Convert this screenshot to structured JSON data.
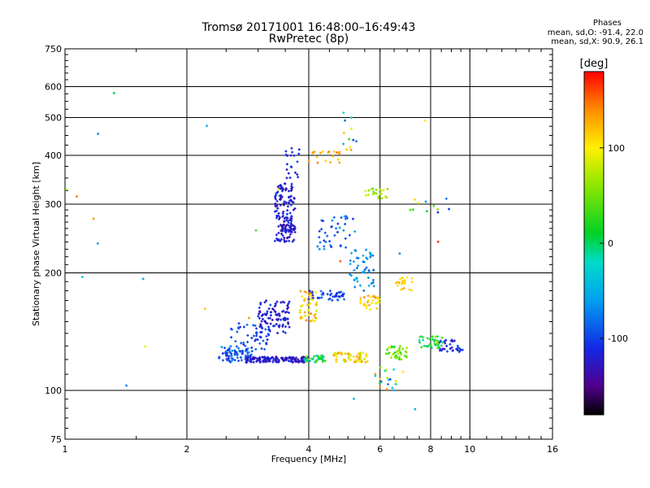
{
  "chart_data": {
    "type": "scatter",
    "title": "Tromsø 20171001 16:48:00–16:49:43",
    "subtitle": "RwPretec (8p)",
    "xlabel": "Frequency [MHz]",
    "ylabel": "Stationary phase Virtual Height [km]",
    "xscale": "log",
    "yscale": "log",
    "xlim": [
      1,
      16
    ],
    "ylim": [
      75,
      750
    ],
    "xticks": [
      "1",
      "2",
      "4",
      "6",
      "8",
      "10",
      "16"
    ],
    "yticks": [
      "75",
      "100",
      "200",
      "300",
      "400",
      "500",
      "600",
      "750"
    ],
    "grid": true,
    "colorbar": {
      "label": "[deg]",
      "ticks": [
        "100",
        "0",
        "-100"
      ],
      "range": [
        -180,
        180
      ]
    },
    "stats": {
      "heading": "Phases",
      "o_line": "mean, sd,O: -91.4, 22.0",
      "x_line": "mean, sd,X: 90.9, 26.1"
    },
    "clusters": [
      {
        "f": [
          2.4,
          2.9
        ],
        "h": [
          118,
          130
        ],
        "phase": [
          -60,
          -110
        ],
        "n": 60
      },
      {
        "f": [
          2.5,
          3.2
        ],
        "h": [
          120,
          150
        ],
        "phase": [
          -80,
          -120
        ],
        "n": 70
      },
      {
        "f": [
          2.8,
          4.0
        ],
        "h": [
          118,
          122
        ],
        "phase": [
          -110,
          -140
        ],
        "n": 140
      },
      {
        "f": [
          3.0,
          3.6
        ],
        "h": [
          140,
          170
        ],
        "phase": [
          -100,
          -140
        ],
        "n": 90
      },
      {
        "f": [
          3.3,
          3.7
        ],
        "h": [
          240,
          340
        ],
        "phase": [
          -100,
          -140
        ],
        "n": 140
      },
      {
        "f": [
          3.4,
          3.7
        ],
        "h": [
          255,
          265
        ],
        "phase": [
          -110,
          -140
        ],
        "n": 40
      },
      {
        "f": [
          3.5,
          3.8
        ],
        "h": [
          350,
          420
        ],
        "phase": [
          -100,
          -130
        ],
        "n": 20
      },
      {
        "f": [
          3.8,
          4.2
        ],
        "h": [
          150,
          180
        ],
        "phase": [
          80,
          150
        ],
        "n": 50
      },
      {
        "f": [
          3.9,
          4.4
        ],
        "h": [
          118,
          123
        ],
        "phase": [
          -40,
          60
        ],
        "n": 40
      },
      {
        "f": [
          4.0,
          5.0
        ],
        "h": [
          170,
          180
        ],
        "phase": [
          -80,
          -120
        ],
        "n": 40
      },
      {
        "f": [
          4.2,
          5.2
        ],
        "h": [
          230,
          280
        ],
        "phase": [
          -60,
          -110
        ],
        "n": 40
      },
      {
        "f": [
          4.6,
          5.6
        ],
        "h": [
          118,
          125
        ],
        "phase": [
          70,
          140
        ],
        "n": 60
      },
      {
        "f": [
          5.0,
          5.8
        ],
        "h": [
          180,
          230
        ],
        "phase": [
          -40,
          -90
        ],
        "n": 50
      },
      {
        "f": [
          5.3,
          6.0
        ],
        "h": [
          160,
          175
        ],
        "phase": [
          90,
          140
        ],
        "n": 30
      },
      {
        "f": [
          5.5,
          6.3
        ],
        "h": [
          310,
          330
        ],
        "phase": [
          40,
          90
        ],
        "n": 25
      },
      {
        "f": [
          4.0,
          4.8
        ],
        "h": [
          380,
          410
        ],
        "phase": [
          110,
          150
        ],
        "n": 20
      },
      {
        "f": [
          6.2,
          7.0
        ],
        "h": [
          120,
          130
        ],
        "phase": [
          20,
          80
        ],
        "n": 40
      },
      {
        "f": [
          6.5,
          7.3
        ],
        "h": [
          180,
          195
        ],
        "phase": [
          90,
          130
        ],
        "n": 20
      },
      {
        "f": [
          7.5,
          8.6
        ],
        "h": [
          128,
          138
        ],
        "phase": [
          -20,
          60
        ],
        "n": 40
      },
      {
        "f": [
          8.4,
          9.6
        ],
        "h": [
          125,
          135
        ],
        "phase": [
          -90,
          -130
        ],
        "n": 30
      },
      {
        "f": [
          4.8,
          5.3
        ],
        "h": [
          400,
          520
        ],
        "phase": [
          -120,
          150
        ],
        "n": 12
      },
      {
        "f": [
          5.8,
          7.0
        ],
        "h": [
          100,
          115
        ],
        "phase": [
          -120,
          150
        ],
        "n": 20
      },
      {
        "f": [
          7.0,
          9.0
        ],
        "h": [
          280,
          310
        ],
        "phase": [
          -130,
          140
        ],
        "n": 10
      },
      {
        "f": [
          1.0,
          10.0
        ],
        "h": [
          80,
          650
        ],
        "phase": [
          -170,
          170
        ],
        "n": 22
      }
    ]
  }
}
